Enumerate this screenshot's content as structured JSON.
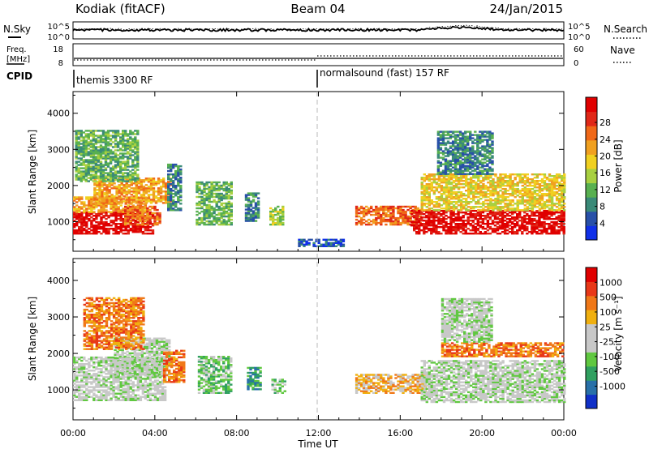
{
  "header": {
    "title_left": "Kodiak (fitACF)",
    "title_center": "Beam 04",
    "title_right": "24/Jan/2015"
  },
  "top_panels": {
    "nsky_label": "N.Sky",
    "nsearch_label": "N.Search",
    "nsky_ticks": [
      "10^5",
      "10^0"
    ],
    "nsky_right_ticks": [
      "10^5",
      "10^0"
    ],
    "freq_label_line1": "Freq.",
    "freq_label_line2": "[MHz]",
    "freq_ticks": [
      "18",
      "8"
    ],
    "nave_label": "Nave",
    "nave_ticks": [
      "60",
      "0"
    ],
    "cpid_label": "CPID",
    "cpid_segments": [
      {
        "text": "themis 3300 RF",
        "start_hour": 0
      },
      {
        "text": "normalsound (fast) 157 RF",
        "start_hour": 12
      }
    ]
  },
  "chart_data": [
    {
      "type": "heatmap",
      "name": "power",
      "ylabel": "Slant Range [km]",
      "yticks": [
        1000,
        2000,
        3000,
        4000
      ],
      "ylim": [
        180,
        4600
      ],
      "xlim": [
        0,
        24
      ],
      "colorbar": {
        "label": "Power [dB]",
        "ticks": [
          "4",
          "8",
          "12",
          "16",
          "20",
          "24",
          "28"
        ],
        "colors": [
          "#1030e8",
          "#2850a8",
          "#3a8a78",
          "#58b050",
          "#a8d040",
          "#f0d020",
          "#f0a020",
          "#f06818",
          "#e02818",
          "#e00000"
        ]
      },
      "regions": [
        {
          "t0": 0.0,
          "t1": 3.9,
          "r0": 650,
          "r1": 1250,
          "level": 9
        },
        {
          "t0": 0.0,
          "t1": 3.5,
          "r0": 1250,
          "r1": 1700,
          "level": 6
        },
        {
          "t0": 1.0,
          "t1": 4.8,
          "r0": 1500,
          "r1": 2200,
          "level": 6
        },
        {
          "t0": 0.1,
          "t1": 3.2,
          "r0": 2100,
          "r1": 3500,
          "level": 3
        },
        {
          "t0": 2.5,
          "t1": 4.3,
          "r0": 900,
          "r1": 1400,
          "level": 7
        },
        {
          "t0": 4.6,
          "t1": 5.3,
          "r0": 1300,
          "r1": 2600,
          "level": 2
        },
        {
          "t0": 6.0,
          "t1": 7.8,
          "r0": 900,
          "r1": 2100,
          "level": 3
        },
        {
          "t0": 8.4,
          "t1": 9.1,
          "r0": 1000,
          "r1": 1800,
          "level": 2
        },
        {
          "t0": 9.6,
          "t1": 10.3,
          "r0": 900,
          "r1": 1400,
          "level": 4
        },
        {
          "t0": 11.0,
          "t1": 13.2,
          "r0": 300,
          "r1": 500,
          "level": 1
        },
        {
          "t0": 13.8,
          "t1": 17.0,
          "r0": 900,
          "r1": 1400,
          "level": 7
        },
        {
          "t0": 16.5,
          "t1": 24.0,
          "r0": 650,
          "r1": 1300,
          "level": 9
        },
        {
          "t0": 17.0,
          "t1": 24.0,
          "r0": 1300,
          "r1": 2300,
          "level": 5
        },
        {
          "t0": 17.8,
          "t1": 20.5,
          "r0": 2300,
          "r1": 3500,
          "level": 2
        }
      ]
    },
    {
      "type": "heatmap",
      "name": "velocity",
      "ylabel": "Slant Range [km]",
      "yticks": [
        1000,
        2000,
        3000,
        4000
      ],
      "ylim": [
        180,
        4600
      ],
      "xlim": [
        0,
        24
      ],
      "xticks": [
        "00:00",
        "04:00",
        "08:00",
        "12:00",
        "16:00",
        "20:00",
        "00:00"
      ],
      "xlabel": "Time UT",
      "colorbar": {
        "label": "Velocity [m s⁻¹]",
        "ticks": [
          "1000",
          "500",
          "100",
          "25",
          "-25",
          "-100",
          "-500",
          "-1000"
        ],
        "colors": [
          "#1030c8",
          "#2870a8",
          "#30a060",
          "#60c840",
          "#c8c8c8",
          "#c8c8c8",
          "#f0b010",
          "#f07818",
          "#e83818",
          "#e00000"
        ]
      },
      "regions": [
        {
          "t0": 0.0,
          "t1": 4.5,
          "r0": 700,
          "r1": 1900,
          "level": 4
        },
        {
          "t0": 2.0,
          "t1": 4.7,
          "r0": 1400,
          "r1": 2400,
          "level": 4
        },
        {
          "t0": 0.5,
          "t1": 3.5,
          "r0": 2100,
          "r1": 3500,
          "level": 7
        },
        {
          "t0": 4.4,
          "t1": 5.4,
          "r0": 1200,
          "r1": 2100,
          "level": 7
        },
        {
          "t0": 6.1,
          "t1": 7.7,
          "r0": 900,
          "r1": 1900,
          "level": 3
        },
        {
          "t0": 8.5,
          "t1": 9.1,
          "r0": 1000,
          "r1": 1600,
          "level": 2
        },
        {
          "t0": 9.7,
          "t1": 10.4,
          "r0": 900,
          "r1": 1300,
          "level": 3
        },
        {
          "t0": 13.8,
          "t1": 17.2,
          "r0": 900,
          "r1": 1400,
          "level": 6
        },
        {
          "t0": 17.0,
          "t1": 24.0,
          "r0": 650,
          "r1": 1800,
          "level": 4
        },
        {
          "t0": 18.0,
          "t1": 24.0,
          "r0": 1900,
          "r1": 2300,
          "level": 7
        },
        {
          "t0": 18.0,
          "t1": 20.5,
          "r0": 2300,
          "r1": 3500,
          "level": 4
        }
      ]
    }
  ]
}
